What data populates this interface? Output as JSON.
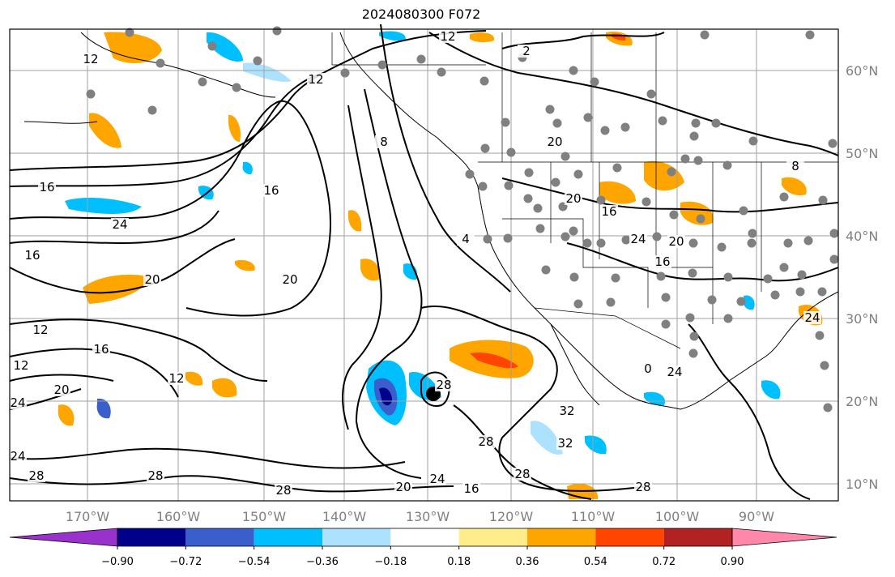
{
  "title": "2024080300 F072",
  "longitude_labels": [
    "170°W",
    "160°W",
    "150°W",
    "140°W",
    "130°W",
    "120°W",
    "110°W",
    "100°W",
    "90°W"
  ],
  "latitude_labels": [
    "60°N",
    "50°N",
    "40°N",
    "30°N",
    "20°N",
    "10°N"
  ],
  "colorbar": {
    "tick_labels": [
      "−0.90",
      "−0.72",
      "−0.54",
      "−0.36",
      "−0.18",
      "0.18",
      "0.36",
      "0.54",
      "0.72",
      "0.90"
    ],
    "colors": [
      "#9932CC",
      "#00008B",
      "#3A5FCD",
      "#00BFFF",
      "#ADE2FF",
      "#FFFFFF",
      "#FFEC8B",
      "#FFA500",
      "#FF4500",
      "#B22222",
      "#FF88AA"
    ]
  },
  "contour_labels": [
    "12",
    "12",
    "2",
    "12",
    "8",
    "16",
    "16",
    "20",
    "20",
    "24",
    "16",
    "20",
    "12",
    "16",
    "12",
    "20",
    "24",
    "24",
    "28",
    "28",
    "12",
    "28",
    "28",
    "32",
    "28",
    "20",
    "24",
    "16",
    "28",
    "32",
    "28",
    "20",
    "16",
    "24",
    "16",
    "20",
    "8",
    "24",
    "4",
    "0",
    "24"
  ],
  "colors": {
    "contour": "#000000",
    "grid": "#a0a0a0",
    "station_dot": "#808080",
    "storm_center": "#000000"
  }
}
